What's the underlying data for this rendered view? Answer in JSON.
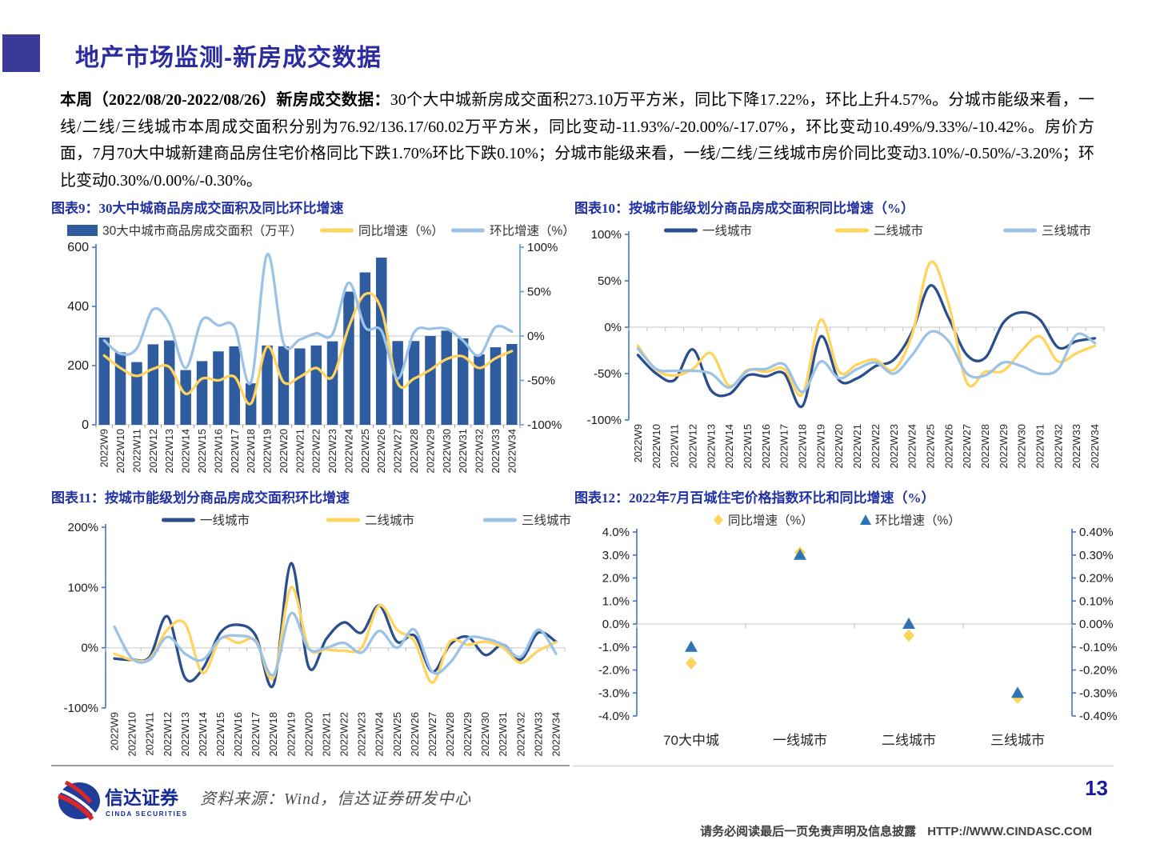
{
  "page": {
    "title": "地产市场监测-新房成交数据",
    "page_number": "13",
    "footer": {
      "source": "资料来源：Wind，信达证券研发中心",
      "disclaimer": "请务必阅读最后一页免责声明及信息披露",
      "website": "HTTP://WWW.CINDASC.COM",
      "logo_cn": "信达证券",
      "logo_en": "CINDA SECURITIES"
    }
  },
  "intro": {
    "bold_lead": "本周（2022/08/20-2022/08/26）新房成交数据：",
    "body": "30个大中城新房成交面积273.10万平方米，同比下降17.22%，环比上升4.57%。分城市能级来看，一线/二线/三线城市本周成交面积分别为76.92/136.17/60.02万平方米，同比变动-11.93%/-20.00%/-17.07%，环比变动10.49%/9.33%/-10.42%。房价方面，7月70大中城新建商品房住宅价格同比下跌1.70%环比下跌0.10%；分城市能级来看，一线/二线/三线城市房价同比变动3.10%/-0.50%/-3.20%；环比变动0.30%/0.00%/-0.30%。"
  },
  "colors": {
    "title_blue": "#2C2CA1",
    "caption_blue": "#2231A3",
    "bar_blue": "#2E5C9F",
    "dark_line_blue": "#2B4E8C",
    "yellow": "#FFD45E",
    "light_blue": "#9CC3E6",
    "axis_blue": "#4472C4",
    "right_axis_light_blue": "#5B9BD5",
    "scatter_triangle_blue": "#2E75B6",
    "zero_line_gray": "#D9D9D9"
  },
  "chart_data": [
    {
      "el": "fig9",
      "title": "图表9：30大中城商品房成交面积及同比环比增速",
      "type": "bar+line",
      "categories": [
        "2022W9",
        "2022W10",
        "2022W11",
        "2022W12",
        "2022W13",
        "2022W14",
        "2022W15",
        "2022W16",
        "2022W17",
        "2022W18",
        "2022W19",
        "2022W20",
        "2022W21",
        "2022W22",
        "2022W23",
        "2022W24",
        "2022W25",
        "2022W26",
        "2022W27",
        "2022W28",
        "2022W29",
        "2022W30",
        "2022W31",
        "2022W32",
        "2022W33",
        "2022W34"
      ],
      "axes": {
        "left": {
          "ticks": [
            {
              "v": 0,
              "t": "0"
            },
            {
              "v": 200,
              "t": "200"
            },
            {
              "v": 400,
              "t": "400"
            },
            {
              "v": 600,
              "t": "600"
            }
          ]
        },
        "right": {
          "ticks": [
            {
              "v": -100,
              "t": "-100%"
            },
            {
              "v": -50,
              "t": "-50%"
            },
            {
              "v": 0,
              "t": "0%"
            },
            {
              "v": 50,
              "t": "50%"
            },
            {
              "v": 100,
              "t": "100%"
            }
          ]
        }
      },
      "series": [
        {
          "name": "30大中城市商品房成交面积（万平）",
          "type": "bar",
          "axis": "left",
          "color": "#2E5C9F",
          "values": [
            295,
            245,
            212,
            272,
            285,
            185,
            215,
            248,
            265,
            140,
            268,
            265,
            258,
            268,
            282,
            450,
            515,
            565,
            283,
            283,
            300,
            318,
            292,
            238,
            262,
            273
          ]
        },
        {
          "name": "同比增速（%）",
          "type": "line",
          "axis": "right",
          "color": "#FFD45E",
          "values": [
            -22,
            -36,
            -45,
            -37,
            -35,
            -65,
            -48,
            -50,
            -46,
            -76,
            -12,
            -52,
            -46,
            -36,
            -46,
            10,
            47,
            30,
            -53,
            -48,
            -38,
            -26,
            -23,
            -36,
            -25,
            -17
          ]
        },
        {
          "name": "环比增速（%）",
          "type": "line",
          "axis": "right",
          "color": "#9CC3E6",
          "values": [
            -5,
            -20,
            -14,
            30,
            14,
            -36,
            18,
            12,
            10,
            -52,
            92,
            -8,
            -4,
            3,
            2,
            60,
            10,
            6,
            -48,
            4,
            8,
            8,
            -5,
            -22,
            10,
            5
          ]
        }
      ]
    },
    {
      "el": "fig10",
      "title": "图表10：按城市能级划分商品房成交面积同比增速（%）",
      "type": "line",
      "categories": [
        "2022W9",
        "2022W10",
        "2022W11",
        "2022W12",
        "2022W13",
        "2022W14",
        "2022W15",
        "2022W16",
        "2022W17",
        "2022W18",
        "2022W19",
        "2022W20",
        "2022W21",
        "2022W22",
        "2022W23",
        "2022W24",
        "2022W25",
        "2022W26",
        "2022W27",
        "2022W28",
        "2022W29",
        "2022W30",
        "2022W31",
        "2022W32",
        "2022W33",
        "2022W34"
      ],
      "axes": {
        "left": {
          "ticks": [
            {
              "v": -100,
              "t": "-100%"
            },
            {
              "v": -50,
              "t": "-50%"
            },
            {
              "v": 0,
              "t": "0%"
            },
            {
              "v": 50,
              "t": "50%"
            },
            {
              "v": 100,
              "t": "100%"
            }
          ]
        }
      },
      "series": [
        {
          "name": "一线城市",
          "type": "line",
          "axis": "left",
          "color": "#2B4E8C",
          "values": [
            -30,
            -50,
            -57,
            -24,
            -68,
            -72,
            -52,
            -53,
            -50,
            -85,
            -10,
            -57,
            -55,
            -42,
            -35,
            -5,
            45,
            10,
            -30,
            -33,
            5,
            16,
            8,
            -22,
            -15,
            -12
          ]
        },
        {
          "name": "二线城市",
          "type": "line",
          "axis": "left",
          "color": "#FFD45E",
          "values": [
            -20,
            -46,
            -52,
            -45,
            -28,
            -63,
            -46,
            -48,
            -45,
            -72,
            8,
            -48,
            -40,
            -35,
            -46,
            -8,
            70,
            25,
            -60,
            -48,
            -47,
            -25,
            -10,
            -37,
            -28,
            -20
          ]
        },
        {
          "name": "三线城市",
          "type": "line",
          "axis": "left",
          "color": "#9CC3E6",
          "values": [
            -23,
            -45,
            -47,
            -47,
            -50,
            -65,
            -47,
            -45,
            -40,
            -70,
            -37,
            -55,
            -45,
            -38,
            -50,
            -30,
            -5,
            -15,
            -50,
            -52,
            -38,
            -42,
            -50,
            -45,
            -8,
            -17
          ]
        }
      ]
    },
    {
      "el": "fig11",
      "title": "图表11：按城市能级划分商品房成交面积环比增速",
      "type": "line",
      "categories": [
        "2022W9",
        "2022W10",
        "2022W11",
        "2022W12",
        "2022W13",
        "2022W14",
        "2022W15",
        "2022W16",
        "2022W17",
        "2022W18",
        "2022W19",
        "2022W20",
        "2022W21",
        "2022W22",
        "2022W23",
        "2022W24",
        "2022W25",
        "2022W26",
        "2022W27",
        "2022W28",
        "2022W29",
        "2022W30",
        "2022W31",
        "2022W32",
        "2022W33",
        "2022W34"
      ],
      "axes": {
        "left": {
          "ticks": [
            {
              "v": -100,
              "t": "-100%"
            },
            {
              "v": 0,
              "t": "0%"
            },
            {
              "v": 100,
              "t": "100%"
            },
            {
              "v": 200,
              "t": "200%"
            }
          ]
        }
      },
      "series": [
        {
          "name": "一线城市",
          "type": "line",
          "axis": "left",
          "color": "#2B4E8C",
          "values": [
            -18,
            -20,
            -15,
            52,
            -50,
            -35,
            25,
            38,
            20,
            -62,
            140,
            -32,
            15,
            42,
            25,
            70,
            10,
            20,
            -40,
            5,
            18,
            -12,
            5,
            -20,
            25,
            10
          ]
        },
        {
          "name": "二线城市",
          "type": "line",
          "axis": "left",
          "color": "#FFD45E",
          "values": [
            -10,
            -20,
            -18,
            30,
            40,
            -42,
            15,
            8,
            12,
            -50,
            100,
            0,
            -3,
            -5,
            0,
            70,
            30,
            10,
            -58,
            10,
            5,
            10,
            0,
            -25,
            -5,
            9
          ]
        },
        {
          "name": "三线城市",
          "type": "line",
          "axis": "left",
          "color": "#9CC3E6",
          "values": [
            35,
            -18,
            -20,
            18,
            -10,
            -20,
            15,
            20,
            10,
            -45,
            57,
            -2,
            0,
            8,
            -8,
            28,
            0,
            30,
            -40,
            -25,
            15,
            15,
            5,
            -15,
            30,
            -10
          ]
        }
      ]
    },
    {
      "el": "fig12",
      "title": "图表12：2022年7月百城住宅价格指数环比和同比增速（%）",
      "type": "scatter",
      "categories": [
        "70大中城",
        "一线城市",
        "二线城市",
        "三线城市"
      ],
      "axes": {
        "left": {
          "ticks": [
            {
              "v": -4,
              "t": "-4.0%"
            },
            {
              "v": -3,
              "t": "-3.0%"
            },
            {
              "v": -2,
              "t": "-2.0%"
            },
            {
              "v": -1,
              "t": "-1.0%"
            },
            {
              "v": 0,
              "t": "0.0%"
            },
            {
              "v": 1,
              "t": "1.0%"
            },
            {
              "v": 2,
              "t": "2.0%"
            },
            {
              "v": 3,
              "t": "3.0%"
            },
            {
              "v": 4,
              "t": "4.0%"
            }
          ]
        },
        "right": {
          "ticks": [
            {
              "v": -0.4,
              "t": "-0.40%"
            },
            {
              "v": -0.3,
              "t": "-0.30%"
            },
            {
              "v": -0.2,
              "t": "-0.20%"
            },
            {
              "v": -0.1,
              "t": "-0.10%"
            },
            {
              "v": 0,
              "t": "0.00%"
            },
            {
              "v": 0.1,
              "t": "0.10%"
            },
            {
              "v": 0.2,
              "t": "0.20%"
            },
            {
              "v": 0.3,
              "t": "0.30%"
            },
            {
              "v": 0.4,
              "t": "0.40%"
            }
          ]
        }
      },
      "series": [
        {
          "name": "同比增速（%）",
          "type": "scatter-diamond",
          "axis": "left",
          "color": "#FFD45E",
          "values": [
            -1.7,
            3.1,
            -0.5,
            -3.2
          ]
        },
        {
          "name": "环比增速（%）",
          "type": "scatter-triangle",
          "axis": "right",
          "color": "#2E75B6",
          "values": [
            -0.1,
            0.3,
            0.0,
            -0.3
          ]
        }
      ]
    }
  ]
}
